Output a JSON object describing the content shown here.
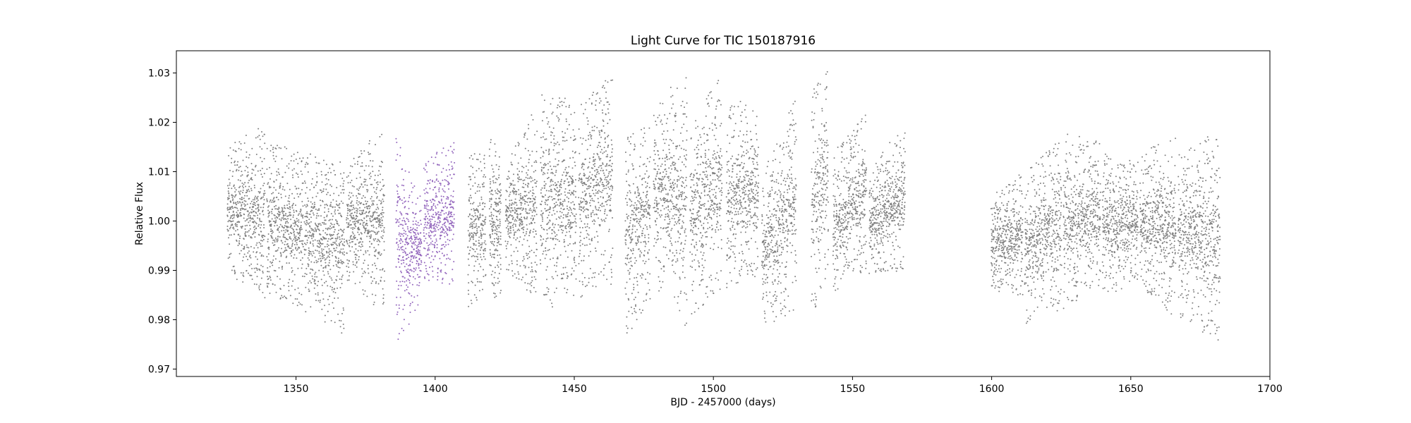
{
  "chart_data": {
    "type": "scatter",
    "title": "Light Curve for TIC 150187916",
    "xlabel": "BJD - 2457000 (days)",
    "ylabel": "Relative Flux",
    "xlim": [
      1307,
      1700
    ],
    "ylim": [
      0.9685,
      1.0345
    ],
    "xticks": [
      1350,
      1400,
      1450,
      1500,
      1550,
      1600,
      1650,
      1700
    ],
    "xtick_labels": [
      "1350",
      "1400",
      "1450",
      "1500",
      "1550",
      "1600",
      "1650",
      "1700"
    ],
    "yticks": [
      0.97,
      0.98,
      0.99,
      1.0,
      1.01,
      1.02,
      1.03
    ],
    "ytick_labels": [
      "0.97",
      "0.98",
      "0.99",
      "1.00",
      "1.01",
      "1.02",
      "1.03"
    ],
    "grid": false,
    "marker_size": "small",
    "series": [
      {
        "role": "background",
        "color": "#808080",
        "segments": [
          {
            "x": [
              1325.3,
              1338.8
            ],
            "y_min": [
              0.989,
              0.984
            ],
            "y_max": [
              1.015,
              1.02
            ]
          },
          {
            "x": [
              1339.5,
              1352.6
            ],
            "y_min": [
              0.985,
              0.982
            ],
            "y_max": [
              1.016,
              1.014
            ]
          },
          {
            "x": [
              1353.0,
              1367.4
            ],
            "y_min": [
              0.981,
              0.977
            ],
            "y_max": [
              1.014,
              1.012
            ]
          },
          {
            "x": [
              1368.1,
              1381.8
            ],
            "y_min": [
              0.988,
              0.981
            ],
            "y_max": [
              1.011,
              1.02
            ]
          },
          {
            "x": [
              1411.8,
              1418.2
            ],
            "y_min": [
              0.982,
              0.985
            ],
            "y_max": [
              1.013,
              1.015
            ]
          },
          {
            "x": [
              1419.5,
              1423.7
            ],
            "y_min": [
              0.984,
              0.985
            ],
            "y_max": [
              1.018,
              1.014
            ]
          },
          {
            "x": [
              1425.3,
              1436.6
            ],
            "y_min": [
              0.99,
              0.984
            ],
            "y_max": [
              1.013,
              1.024
            ]
          },
          {
            "x": [
              1437.8,
              1450.7
            ],
            "y_min": [
              0.981,
              0.985
            ],
            "y_max": [
              1.027,
              1.024
            ]
          },
          {
            "x": [
              1451.6,
              1463.8
            ],
            "y_min": [
              0.984,
              0.987
            ],
            "y_max": [
              1.024,
              1.03
            ]
          },
          {
            "x": [
              1468.3,
              1477.3
            ],
            "y_min": [
              0.976,
              0.983
            ],
            "y_max": [
              1.018,
              1.021
            ]
          },
          {
            "x": [
              1478.5,
              1490.5
            ],
            "y_min": [
              0.987,
              0.978
            ],
            "y_max": [
              1.023,
              1.031
            ]
          },
          {
            "x": [
              1491.6,
              1503.1
            ],
            "y_min": [
              0.98,
              0.986
            ],
            "y_max": [
              1.02,
              1.03
            ]
          },
          {
            "x": [
              1504.7,
              1516.2
            ],
            "y_min": [
              0.986,
              0.989
            ],
            "y_max": [
              1.024,
              1.025
            ]
          },
          {
            "x": [
              1517.4,
              1529.8
            ],
            "y_min": [
              0.978,
              0.982
            ],
            "y_max": [
              1.009,
              1.026
            ]
          },
          {
            "x": [
              1535.2,
              1541.3
            ],
            "y_min": [
              0.98,
              0.988
            ],
            "y_max": [
              1.026,
              1.031
            ]
          },
          {
            "x": [
              1543.0,
              1555.0
            ],
            "y_min": [
              0.984,
              0.99
            ],
            "y_max": [
              1.014,
              1.022
            ]
          },
          {
            "x": [
              1556.0,
              1568.9
            ],
            "y_min": [
              0.989,
              0.99
            ],
            "y_max": [
              1.01,
              1.021
            ]
          },
          {
            "x": [
              1599.8,
              1611.2
            ],
            "y_min": [
              0.986,
              0.984
            ],
            "y_max": [
              1.005,
              1.01
            ]
          },
          {
            "x": [
              1611.9,
              1625.1
            ],
            "y_min": [
              0.979,
              0.982
            ],
            "y_max": [
              1.01,
              1.017
            ]
          },
          {
            "x": [
              1625.8,
              1639.1
            ],
            "y_min": [
              0.982,
              0.986
            ],
            "y_max": [
              1.018,
              1.016
            ]
          },
          {
            "x": [
              1639.8,
              1652.6
            ],
            "y_min": [
              0.984,
              0.988
            ],
            "y_max": [
              1.014,
              1.012
            ]
          },
          {
            "x": [
              1653.3,
              1666.2
            ],
            "y_min": [
              0.987,
              0.98
            ],
            "y_max": [
              1.014,
              1.017
            ]
          },
          {
            "x": [
              1667.0,
              1682.1
            ],
            "y_min": [
              0.98,
              0.975
            ],
            "y_max": [
              1.015,
              1.018
            ]
          }
        ]
      },
      {
        "role": "highlight",
        "color": "#9467bd",
        "segments": [
          {
            "x": [
              1385.9,
              1395.1
            ],
            "y_min": [
              0.974,
              0.984
            ],
            "y_max": [
              1.017,
              1.005
            ]
          },
          {
            "x": [
              1395.9,
              1406.9
            ],
            "y_min": [
              0.988,
              0.987
            ],
            "y_max": [
              1.012,
              1.017
            ]
          }
        ]
      }
    ]
  }
}
